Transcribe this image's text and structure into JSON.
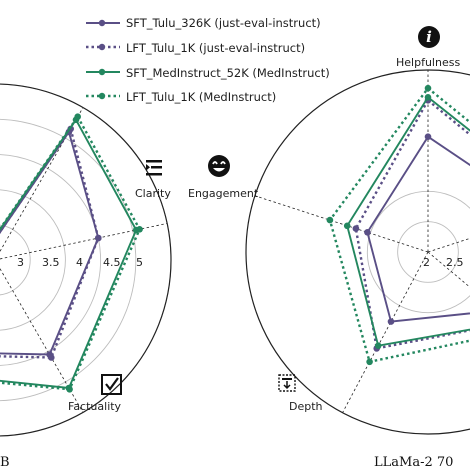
{
  "colors": {
    "purple": "#5a4f86",
    "green": "#23875f",
    "grid": "#bdbdbd",
    "axis": "#222222"
  },
  "legend": [
    {
      "label": "SFT_Tulu_326K (just-eval-instruct)",
      "color": "#5a4f86",
      "style": "solid"
    },
    {
      "label": "LFT_Tulu_1K (just-eval-instruct)",
      "color": "#5a4f86",
      "style": "dotted"
    },
    {
      "label": "SFT_MedInstruct_52K (MedInstruct)",
      "color": "#23875f",
      "style": "solid"
    },
    {
      "label": "LFT_Tulu_1K (MedInstruct)",
      "color": "#23875f",
      "style": "dotted"
    }
  ],
  "left_panel": {
    "labels": {
      "clarity": "Clarity",
      "factuality": "Factuality"
    },
    "ticks": [
      "3",
      "3.5",
      "4",
      "4.5",
      "5"
    ],
    "caption": "B",
    "icons": [
      "clarity-icon",
      "factuality-icon"
    ]
  },
  "right_panel": {
    "labels": {
      "helpfulness": "Helpfulness",
      "engagement": "Engagement",
      "depth": "Depth"
    },
    "ticks": [
      "2",
      "2.5"
    ],
    "caption": "LLaMa-2 70",
    "icons": [
      "info-icon",
      "smiley-icon",
      "depth-icon"
    ]
  },
  "chart_data": [
    {
      "type": "radar",
      "axes": [
        "",
        "Clarity",
        "Factuality",
        ""
      ],
      "rlim": [
        2.5,
        5
      ],
      "ticks": [
        3,
        3.5,
        4,
        4.5,
        5
      ],
      "series": [
        {
          "name": "SFT_Tulu_326K (just-eval-instruct)",
          "values": [
            4.6,
            4.0,
            4.05,
            4.2
          ]
        },
        {
          "name": "LFT_Tulu_1K (just-eval-instruct)",
          "values": [
            4.65,
            4.0,
            4.1,
            4.25
          ]
        },
        {
          "name": "SFT_MedInstruct_52K (MedInstruct)",
          "values": [
            4.8,
            4.55,
            4.6,
            4.55
          ]
        },
        {
          "name": "LFT_Tulu_1K (MedInstruct)",
          "values": [
            4.85,
            4.6,
            4.62,
            4.6
          ]
        }
      ]
    },
    {
      "type": "radar",
      "axes": [
        "Helpfulness",
        "",
        "",
        "Depth",
        "Engagement"
      ],
      "rlim": [
        1.5,
        4.5
      ],
      "ticks": [
        2,
        2.5
      ],
      "series": [
        {
          "name": "SFT_Tulu_326K (just-eval-instruct)",
          "values": [
            3.4,
            3.5,
            3.0,
            2.8,
            2.55
          ]
        },
        {
          "name": "LFT_Tulu_1K (just-eval-instruct)",
          "values": [
            4.0,
            3.8,
            3.3,
            3.3,
            2.75
          ]
        },
        {
          "name": "SFT_MedInstruct_52K (MedInstruct)",
          "values": [
            4.05,
            3.9,
            3.3,
            3.25,
            2.9
          ]
        },
        {
          "name": "LFT_Tulu_1K (MedInstruct)",
          "values": [
            4.2,
            4.0,
            3.5,
            3.55,
            3.2
          ]
        }
      ]
    }
  ]
}
